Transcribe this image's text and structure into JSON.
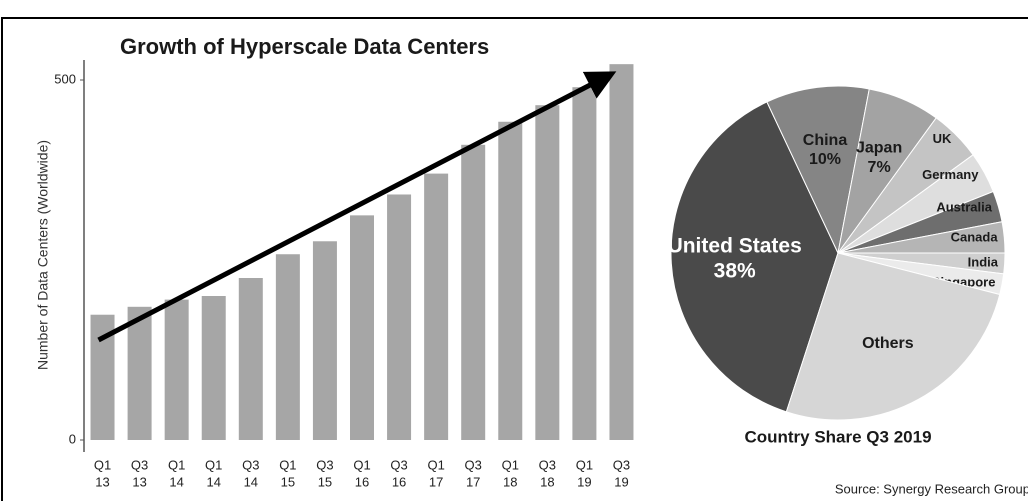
{
  "chart_data": [
    {
      "type": "bar",
      "title": "Growth of Hyperscale Data Centers",
      "y_label": "Number of Data Centers (Worldwide)",
      "categories": [
        [
          "Q1",
          "13"
        ],
        [
          "Q3",
          "13"
        ],
        [
          "Q1",
          "14"
        ],
        [
          "Q1",
          "14"
        ],
        [
          "Q3",
          "14"
        ],
        [
          "Q1",
          "15"
        ],
        [
          "Q3",
          "15"
        ],
        [
          "Q1",
          "16"
        ],
        [
          "Q3",
          "16"
        ],
        [
          "Q1",
          "17"
        ],
        [
          "Q3",
          "17"
        ],
        [
          "Q1",
          "18"
        ],
        [
          "Q3",
          "18"
        ],
        [
          "Q1",
          "19"
        ],
        [
          "Q3",
          "19"
        ]
      ],
      "values": [
        174,
        185,
        195,
        200,
        225,
        258,
        276,
        312,
        341,
        370,
        410,
        442,
        465,
        490,
        522
      ],
      "color": "#a6a6a6",
      "ylim": [
        0,
        525
      ],
      "yticks": [
        0,
        500
      ]
    },
    {
      "type": "pie",
      "title": "Country Share Q3 2019",
      "categories": [
        "United States",
        "China",
        "Japan",
        "UK",
        "Germany",
        "Australia",
        "Canada",
        "India",
        "Singapore",
        "Others"
      ],
      "values": [
        38,
        10,
        7,
        5,
        4,
        3,
        3,
        2,
        2,
        26
      ],
      "value_labels": [
        "38%",
        "10%",
        "7%",
        null,
        null,
        null,
        null,
        null,
        null,
        null
      ],
      "colors": [
        "#4a4a4a",
        "#858585",
        "#a3a3a3",
        "#c4c4c4",
        "#dedede",
        "#6e6e6e",
        "#b5b5b5",
        "#cfcfcf",
        "#ebebeb",
        "#d6d6d6"
      ],
      "source": "Source: Synergy Research Group"
    }
  ]
}
